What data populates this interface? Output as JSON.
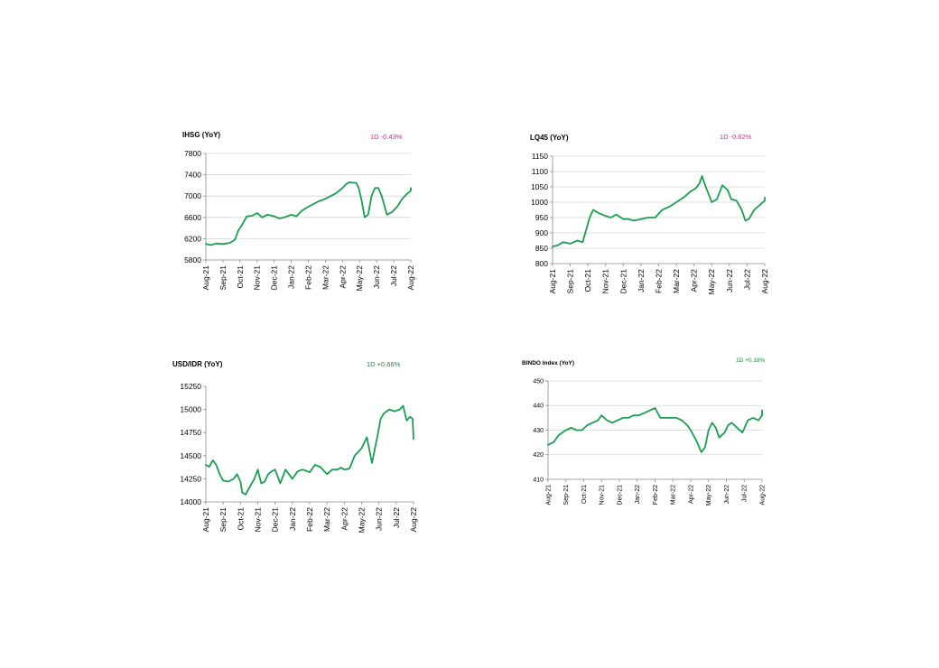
{
  "chart_data": [
    {
      "id": "ihsg",
      "type": "line",
      "title": "IHSG (YoY)",
      "badge": "1D -0.43%",
      "badge_color": "#e0218a",
      "line_color": "#1a9e4f",
      "ylim": [
        5800,
        7800
      ],
      "yticks": [
        5800,
        6200,
        6600,
        7000,
        7400,
        7800
      ],
      "xticks": [
        "Aug-21",
        "Sep-21",
        "Oct-21",
        "Nov-21",
        "Dec-21",
        "Jan-22",
        "Feb-22",
        "Mar-22",
        "Apr-22",
        "May-22",
        "Jun-22",
        "Jul-22",
        "Aug-22"
      ],
      "grid": true,
      "series": [
        {
          "x": [
            0,
            0.3,
            0.6,
            1.0,
            1.4,
            1.7,
            1.9,
            2.1,
            2.4,
            2.7,
            3.0,
            3.3,
            3.6,
            4.0,
            4.3,
            4.6,
            5.0,
            5.3,
            5.6,
            6.0,
            6.3,
            6.6,
            7.0,
            7.3,
            7.6,
            8.0,
            8.2,
            8.4,
            8.6,
            8.8,
            8.95,
            9.1,
            9.3,
            9.5,
            9.7,
            9.9,
            10.1,
            10.3,
            10.6,
            10.9,
            11.2,
            11.5,
            11.8,
            12.0,
            12.2
          ],
          "y": [
            6100,
            6080,
            6110,
            6100,
            6120,
            6180,
            6350,
            6450,
            6620,
            6630,
            6680,
            6600,
            6650,
            6620,
            6580,
            6600,
            6650,
            6620,
            6720,
            6800,
            6850,
            6900,
            6950,
            7000,
            7050,
            7150,
            7220,
            7260,
            7250,
            7250,
            7150,
            6950,
            6600,
            6650,
            7000,
            7150,
            7150,
            7000,
            6650,
            6700,
            6800,
            6950,
            7050,
            7100,
            7150
          ]
        }
      ]
    },
    {
      "id": "lq45",
      "type": "line",
      "title": "LQ45 (YoY)",
      "badge": "1D -0.62%",
      "badge_color": "#e0218a",
      "line_color": "#1a9e4f",
      "ylim": [
        800,
        1150
      ],
      "yticks": [
        800,
        850,
        900,
        950,
        1000,
        1050,
        1100,
        1150
      ],
      "xticks": [
        "Aug-21",
        "Sep-21",
        "Oct-21",
        "Nov-21",
        "Dec-21",
        "Jan-22",
        "Feb-22",
        "Mar-22",
        "Apr-22",
        "May-22",
        "Jun-22",
        "Jul-22",
        "Aug-22"
      ],
      "grid": true,
      "series": [
        {
          "x": [
            0,
            0.3,
            0.6,
            1.0,
            1.4,
            1.7,
            1.9,
            2.1,
            2.3,
            2.6,
            3.0,
            3.3,
            3.6,
            4.0,
            4.3,
            4.6,
            5.0,
            5.4,
            5.8,
            6.2,
            6.6,
            7.0,
            7.4,
            7.8,
            8.1,
            8.3,
            8.45,
            8.6,
            8.8,
            9.0,
            9.3,
            9.6,
            9.9,
            10.1,
            10.4,
            10.7,
            10.9,
            11.1,
            11.4,
            11.7,
            12.0,
            12.2
          ],
          "y": [
            855,
            860,
            870,
            865,
            875,
            870,
            910,
            950,
            975,
            965,
            955,
            950,
            960,
            945,
            945,
            940,
            945,
            950,
            950,
            975,
            985,
            1000,
            1015,
            1035,
            1045,
            1060,
            1085,
            1060,
            1030,
            1000,
            1010,
            1055,
            1040,
            1010,
            1005,
            975,
            940,
            945,
            975,
            990,
            1005,
            1015
          ]
        }
      ]
    },
    {
      "id": "usdidr",
      "type": "line",
      "title": "USD/IDR  (YoY)",
      "badge": "1D +0.66%",
      "badge_color": "#1a8a3a",
      "line_color": "#1a9e4f",
      "ylim": [
        14000,
        15250
      ],
      "yticks": [
        14000,
        14250,
        14500,
        14750,
        15000,
        15250
      ],
      "xticks": [
        "Aug-21",
        "Sep-21",
        "Oct-21",
        "Nov-21",
        "Dec-21",
        "Jan-22",
        "Feb-22",
        "Mar-22",
        "Apr-22",
        "May-22",
        "Jun-22",
        "Jul-22",
        "Aug-22"
      ],
      "grid": false,
      "series": [
        {
          "x": [
            0,
            0.2,
            0.4,
            0.6,
            0.8,
            1.0,
            1.3,
            1.6,
            1.8,
            2.0,
            2.1,
            2.3,
            2.5,
            2.8,
            3.0,
            3.2,
            3.4,
            3.6,
            3.8,
            4.0,
            4.3,
            4.6,
            4.8,
            5.0,
            5.3,
            5.6,
            6.0,
            6.3,
            6.6,
            7.0,
            7.3,
            7.6,
            7.8,
            8.0,
            8.3,
            8.6,
            9.0,
            9.3,
            9.6,
            9.9,
            10.1,
            10.3,
            10.6,
            10.9,
            11.2,
            11.4,
            11.6,
            11.8,
            11.95,
            12.1
          ],
          "y": [
            14400,
            14380,
            14450,
            14400,
            14300,
            14230,
            14220,
            14250,
            14300,
            14220,
            14100,
            14080,
            14150,
            14250,
            14350,
            14200,
            14220,
            14300,
            14330,
            14350,
            14200,
            14350,
            14300,
            14250,
            14330,
            14350,
            14320,
            14400,
            14380,
            14300,
            14350,
            14350,
            14370,
            14350,
            14360,
            14500,
            14580,
            14700,
            14420,
            14700,
            14900,
            14960,
            15000,
            14980,
            15000,
            15040,
            14880,
            14920,
            14900,
            14680
          ]
        }
      ]
    },
    {
      "id": "bindo",
      "type": "line",
      "title": "BINDO Index (YoY)",
      "badge": "1D +0.19%",
      "badge_color": "#1a8a3a",
      "line_color": "#1a9e4f",
      "ylim": [
        410,
        450
      ],
      "yticks": [
        410,
        420,
        430,
        440,
        450
      ],
      "xticks": [
        "Aug-21",
        "Sep-21",
        "Oct-21",
        "Nov-21",
        "Dec-21",
        "Jan-22",
        "Feb-22",
        "Mar-22",
        "Apr-22",
        "May-22",
        "Jun-22",
        "Jul-22",
        "Aug-22"
      ],
      "grid": true,
      "series": [
        {
          "x": [
            0,
            0.3,
            0.6,
            0.8,
            1.0,
            1.3,
            1.6,
            1.9,
            2.2,
            2.5,
            2.8,
            3.0,
            3.3,
            3.6,
            3.9,
            4.2,
            4.5,
            4.8,
            5.1,
            5.4,
            5.7,
            6.0,
            6.3,
            6.6,
            6.9,
            7.2,
            7.5,
            7.8,
            8.0,
            8.3,
            8.6,
            8.8,
            9.0,
            9.2,
            9.4,
            9.6,
            9.9,
            10.1,
            10.3,
            10.6,
            10.9,
            11.2,
            11.5,
            11.8,
            12.0,
            12.2
          ],
          "y": [
            424,
            425,
            428,
            429,
            430,
            431,
            430,
            430,
            432,
            433,
            434,
            436,
            434,
            433,
            434,
            435,
            435,
            436,
            436,
            437,
            438,
            439,
            435,
            435,
            435,
            435,
            434,
            432,
            430,
            426,
            421,
            423,
            430,
            433,
            431,
            427,
            429,
            432,
            433,
            431,
            429,
            434,
            435,
            434,
            436,
            438
          ]
        }
      ]
    }
  ]
}
